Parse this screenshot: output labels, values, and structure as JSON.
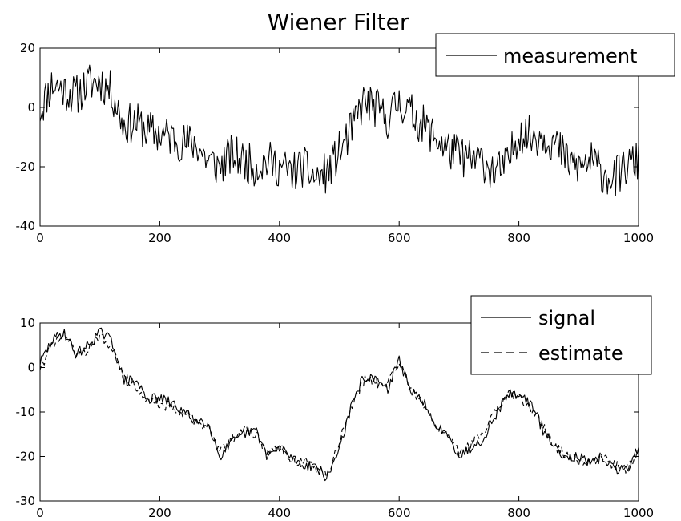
{
  "chart_data": [
    {
      "type": "line",
      "title": "Wiener Filter",
      "xlabel": "",
      "ylabel": "",
      "xlim": [
        0,
        1000
      ],
      "ylim": [
        -40,
        20
      ],
      "x_ticks": [
        "0",
        "200",
        "400",
        "600",
        "800",
        "1000"
      ],
      "y_ticks": [
        "20",
        "0",
        "-20",
        "-40"
      ],
      "grid": false,
      "legend_position": "top-right",
      "series": [
        {
          "name": "measurement",
          "color": "#000000",
          "style": "solid",
          "x": [
            0,
            20,
            40,
            60,
            80,
            100,
            120,
            140,
            160,
            180,
            200,
            220,
            240,
            260,
            280,
            300,
            320,
            340,
            360,
            380,
            400,
            420,
            440,
            460,
            480,
            500,
            520,
            540,
            560,
            580,
            600,
            620,
            640,
            660,
            680,
            700,
            720,
            740,
            760,
            780,
            800,
            820,
            840,
            860,
            880,
            900,
            920,
            940,
            960,
            980,
            1000
          ],
          "y": [
            -1,
            8,
            6,
            4,
            8,
            9,
            5,
            -6,
            -5,
            -8,
            -9,
            -10,
            -12,
            -12,
            -18,
            -20,
            -16,
            -18,
            -20,
            -18,
            -20,
            -22,
            -20,
            -24,
            -22,
            -15,
            -8,
            2,
            0,
            -4,
            2,
            -2,
            -6,
            -10,
            -14,
            -16,
            -18,
            -18,
            -22,
            -20,
            -8,
            -10,
            -9,
            -12,
            -18,
            -20,
            -18,
            -22,
            -24,
            -20,
            -18
          ],
          "noise_amplitude": 7
        }
      ]
    },
    {
      "type": "line",
      "title": "",
      "xlabel": "",
      "ylabel": "",
      "xlim": [
        0,
        1000
      ],
      "ylim": [
        -30,
        10
      ],
      "x_ticks": [
        "0",
        "200",
        "400",
        "600",
        "800",
        "1000"
      ],
      "y_ticks": [
        "10",
        "0",
        "-10",
        "-20",
        "-30"
      ],
      "grid": false,
      "legend_position": "top-right",
      "series": [
        {
          "name": "signal",
          "color": "#000000",
          "style": "solid",
          "x": [
            0,
            20,
            40,
            60,
            80,
            100,
            120,
            140,
            160,
            180,
            200,
            220,
            240,
            260,
            280,
            300,
            320,
            340,
            360,
            380,
            400,
            420,
            440,
            460,
            480,
            500,
            520,
            540,
            560,
            580,
            600,
            620,
            640,
            660,
            680,
            700,
            720,
            740,
            760,
            780,
            800,
            820,
            840,
            860,
            880,
            900,
            920,
            940,
            960,
            980,
            1000
          ],
          "y": [
            1,
            6,
            8,
            3,
            5,
            8,
            6,
            -3,
            -3,
            -7,
            -7,
            -8,
            -10,
            -12,
            -12,
            -20,
            -17,
            -15,
            -14,
            -20,
            -18,
            -20,
            -22,
            -22,
            -25,
            -18,
            -9,
            -2,
            -3,
            -5,
            2,
            -6,
            -7,
            -14,
            -14,
            -20,
            -18,
            -16,
            -11,
            -6,
            -6,
            -8,
            -14,
            -18,
            -20,
            -20,
            -22,
            -20,
            -23,
            -23,
            -18
          ],
          "noise_amplitude": 1.2
        },
        {
          "name": "estimate",
          "color": "#000000",
          "style": "dashed",
          "x": [
            0,
            20,
            40,
            60,
            80,
            100,
            120,
            140,
            160,
            180,
            200,
            220,
            240,
            260,
            280,
            300,
            320,
            340,
            360,
            380,
            400,
            420,
            440,
            460,
            480,
            500,
            520,
            540,
            560,
            580,
            600,
            620,
            640,
            660,
            680,
            700,
            720,
            740,
            760,
            780,
            800,
            820,
            840,
            860,
            880,
            900,
            920,
            940,
            960,
            980,
            1000
          ],
          "y": [
            0,
            5,
            8,
            3,
            4,
            7,
            5,
            -2,
            -4,
            -7,
            -8,
            -9,
            -10,
            -12,
            -13,
            -19,
            -16,
            -14,
            -15,
            -19,
            -18,
            -21,
            -21,
            -23,
            -24,
            -17,
            -9,
            -3,
            -3,
            -4,
            1,
            -5,
            -8,
            -13,
            -15,
            -19,
            -17,
            -15,
            -10,
            -6,
            -7,
            -9,
            -13,
            -18,
            -20,
            -21,
            -21,
            -20,
            -22,
            -23,
            -19
          ],
          "noise_amplitude": 1.2
        }
      ]
    }
  ]
}
